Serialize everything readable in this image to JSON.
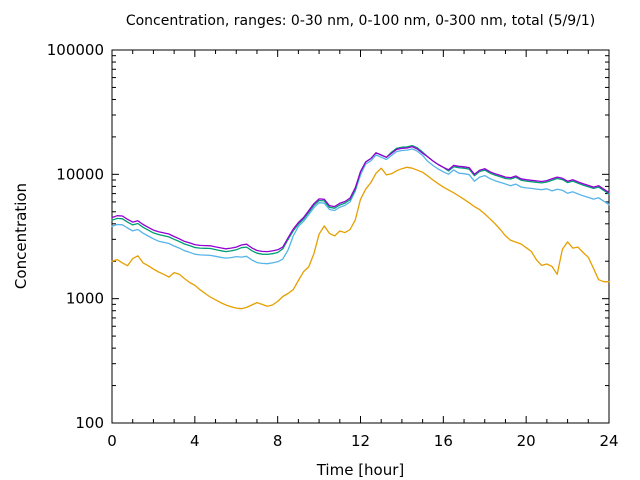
{
  "chart_data": {
    "type": "line",
    "title": "Concentration, ranges: 0-30 nm, 0-100 nm, 0-300 nm, total (5/9/1)",
    "xlabel": "Time [hour]",
    "ylabel": "Concentration",
    "legend": "none",
    "grid": false,
    "x_axis": {
      "min": 0,
      "max": 24,
      "major_ticks": [
        0,
        4,
        8,
        12,
        16,
        20,
        24
      ],
      "minor_tick_interval": 1
    },
    "y_axis": {
      "scale": "log",
      "min": 100,
      "max": 100000,
      "major_ticks": [
        100,
        1000,
        10000,
        100000
      ]
    },
    "x_start": 0,
    "x_step": 0.25,
    "axis_color": "#000000",
    "series": [
      {
        "name": "0-30 nm",
        "key": "range-0-30",
        "color": "#e69f00",
        "values": [
          2000,
          2060,
          1940,
          1840,
          2100,
          2210,
          1940,
          1840,
          1730,
          1640,
          1570,
          1490,
          1620,
          1570,
          1450,
          1350,
          1280,
          1180,
          1100,
          1030,
          980,
          930,
          890,
          860,
          840,
          830,
          850,
          890,
          930,
          900,
          870,
          890,
          950,
          1040,
          1100,
          1180,
          1400,
          1650,
          1800,
          2300,
          3300,
          3850,
          3350,
          3200,
          3500,
          3400,
          3600,
          4300,
          6300,
          7600,
          8600,
          10200,
          11200,
          9900,
          10100,
          10700,
          11100,
          11400,
          11200,
          10800,
          10400,
          9700,
          9000,
          8400,
          7900,
          7500,
          7100,
          6700,
          6300,
          5900,
          5500,
          5200,
          4800,
          4400,
          4000,
          3600,
          3200,
          2950,
          2850,
          2750,
          2570,
          2400,
          2050,
          1850,
          1900,
          1810,
          1570,
          2500,
          2860,
          2550,
          2600,
          2350,
          2150,
          1750,
          1420,
          1370,
          1370
        ]
      },
      {
        "name": "0-100 nm",
        "key": "range-0-100",
        "color": "#56b4e9",
        "values": [
          3820,
          3950,
          3930,
          3700,
          3510,
          3600,
          3360,
          3190,
          3030,
          2900,
          2840,
          2780,
          2650,
          2550,
          2430,
          2360,
          2280,
          2250,
          2240,
          2230,
          2190,
          2150,
          2120,
          2140,
          2180,
          2160,
          2190,
          2050,
          1950,
          1920,
          1910,
          1940,
          1980,
          2080,
          2460,
          3190,
          3810,
          4190,
          4740,
          5390,
          5910,
          5860,
          5210,
          5120,
          5440,
          5630,
          6000,
          7330,
          9870,
          12100,
          12860,
          14300,
          13730,
          13150,
          14210,
          15260,
          15550,
          15650,
          16030,
          15360,
          14210,
          12700,
          11780,
          11040,
          10490,
          10030,
          10860,
          10210,
          10120,
          9940,
          8800,
          9500,
          9770,
          9240,
          8890,
          8620,
          8360,
          8080,
          8340,
          7910,
          7780,
          7700,
          7610,
          7530,
          7650,
          7360,
          7600,
          7440,
          7040,
          7240,
          6960,
          6720,
          6520,
          6320,
          6480,
          6080,
          5700
        ]
      },
      {
        "name": "0-300 nm",
        "key": "range-0-300",
        "color": "#009e73",
        "values": [
          4270,
          4420,
          4390,
          4130,
          3920,
          4020,
          3750,
          3560,
          3380,
          3280,
          3210,
          3140,
          3000,
          2880,
          2750,
          2670,
          2580,
          2550,
          2540,
          2530,
          2480,
          2430,
          2390,
          2420,
          2470,
          2570,
          2600,
          2430,
          2320,
          2280,
          2270,
          2300,
          2350,
          2520,
          2990,
          3510,
          3980,
          4370,
          4950,
          5630,
          6160,
          6110,
          5430,
          5340,
          5670,
          5870,
          6260,
          7570,
          10500,
          12600,
          13400,
          14900,
          14300,
          13700,
          15100,
          16200,
          16520,
          16630,
          17030,
          16320,
          15100,
          13800,
          12800,
          12000,
          11400,
          10630,
          11510,
          11310,
          11210,
          11020,
          9750,
          10530,
          10820,
          10240,
          9850,
          9560,
          9260,
          9170,
          9460,
          8970,
          8820,
          8730,
          8630,
          8530,
          8680,
          8970,
          9260,
          9070,
          8580,
          8820,
          8480,
          8190,
          7950,
          7700,
          7900,
          7410,
          6950
        ]
      },
      {
        "name": "total",
        "key": "total",
        "color": "#9400d3",
        "values": [
          4490,
          4650,
          4620,
          4350,
          4130,
          4230,
          3950,
          3750,
          3560,
          3450,
          3380,
          3310,
          3160,
          3030,
          2890,
          2810,
          2720,
          2680,
          2670,
          2660,
          2610,
          2560,
          2520,
          2550,
          2600,
          2700,
          2740,
          2560,
          2440,
          2400,
          2390,
          2420,
          2470,
          2600,
          3080,
          3620,
          4100,
          4500,
          5100,
          5800,
          6350,
          6300,
          5600,
          5500,
          5850,
          6050,
          6450,
          7800,
          10500,
          12600,
          13400,
          14900,
          14300,
          13700,
          14800,
          15900,
          16200,
          16300,
          16700,
          16000,
          14800,
          13800,
          12800,
          12000,
          11400,
          10900,
          11800,
          11600,
          11500,
          11300,
          10000,
          10800,
          11100,
          10500,
          10100,
          9800,
          9500,
          9400,
          9700,
          9200,
          9050,
          8950,
          8850,
          8750,
          8900,
          9200,
          9500,
          9300,
          8800,
          9050,
          8700,
          8400,
          8150,
          7900,
          8100,
          7600,
          7130
        ]
      }
    ]
  }
}
